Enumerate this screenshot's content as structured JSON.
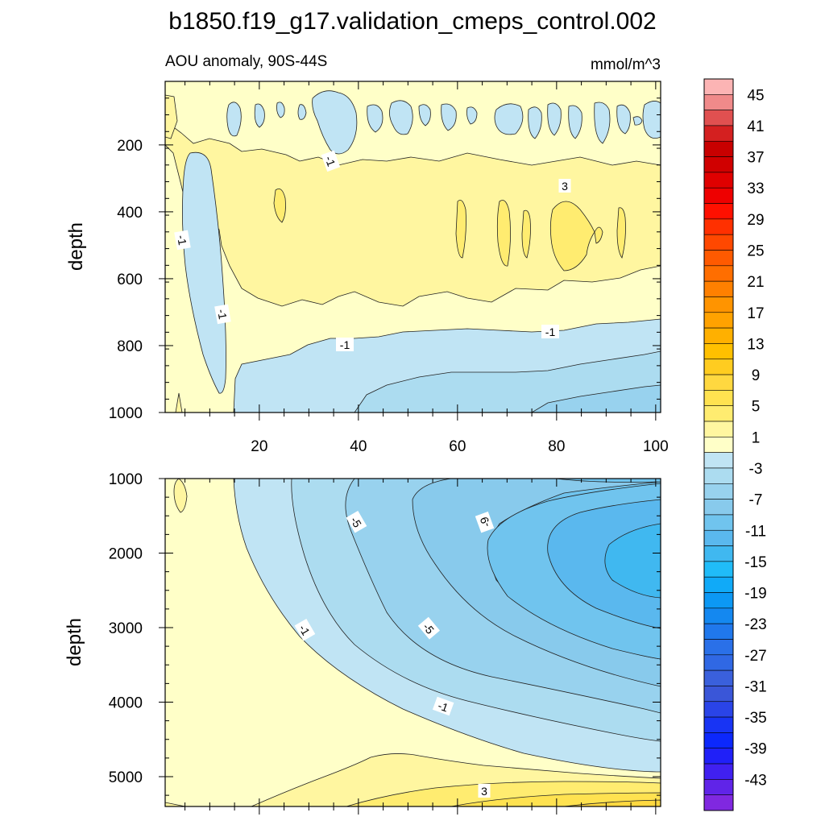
{
  "chart_data": {
    "type": "contour",
    "title": "b1850.f19_g17.validation_cmeps_control.002",
    "subtitle": "AOU anomaly, 90S-44S",
    "units": "mmol/m^3",
    "ylabel": "depth",
    "colorbar": {
      "boundaries": [
        47,
        45,
        43,
        41,
        39,
        37,
        35,
        33,
        31,
        29,
        27,
        25,
        23,
        21,
        19,
        17,
        15,
        13,
        11,
        9,
        7,
        5,
        3,
        1,
        -1,
        -3,
        -5,
        -7,
        -9,
        -11,
        -13,
        -15,
        -17,
        -19,
        -21,
        -23,
        -25,
        -27,
        -29,
        -31,
        -33,
        -35,
        -37,
        -39,
        -41,
        -43,
        -45
      ],
      "labels": [
        "45",
        "41",
        "37",
        "33",
        "29",
        "25",
        "21",
        "17",
        "13",
        "9",
        "5",
        "1",
        "-3",
        "-7",
        "-11",
        "-15",
        "-19",
        "-23",
        "-27",
        "-31",
        "-35",
        "-39",
        "-43"
      ],
      "colors": [
        "#fcb4b4",
        "#f08a8a",
        "#e05050",
        "#d42020",
        "#c80000",
        "#d00000",
        "#e00000",
        "#ee0000",
        "#ff1000",
        "#ff3000",
        "#ff4800",
        "#ff5a00",
        "#ff6e00",
        "#ff8000",
        "#ff9400",
        "#ffa200",
        "#ffb000",
        "#ffc000",
        "#ffcc20",
        "#ffd840",
        "#ffe250",
        "#ffec70",
        "#fff6a0",
        "#ffffc8",
        "#c0e4f4",
        "#acdcf0",
        "#98d2ee",
        "#88caec",
        "#70c4ee",
        "#5ab8ee",
        "#40b8f0",
        "#20bcf8",
        "#10aaf8",
        "#0c98f4",
        "#1488f0",
        "#2078ec",
        "#2a70e8",
        "#3068e4",
        "#3a60dc",
        "#3a56d8",
        "#2a44e8",
        "#1834f4",
        "#0c28fc",
        "#2020f8",
        "#4020f0",
        "#6024e8",
        "#8028e0"
      ]
    },
    "panels": [
      {
        "name": "upper",
        "x_range": [
          1,
          101
        ],
        "y_range": [
          1000,
          10
        ],
        "xticks": [
          "20",
          "40",
          "60",
          "80",
          "100"
        ],
        "yticks": [
          "200",
          "400",
          "600",
          "800",
          "1000"
        ],
        "contour_labels": [
          "-1",
          "-1",
          "-1",
          "-1",
          "-1",
          "3"
        ]
      },
      {
        "name": "lower",
        "x_range": [
          1,
          101
        ],
        "y_range": [
          5400,
          1000
        ],
        "xticks": [
          "20",
          "40",
          "60",
          "80",
          "100"
        ],
        "yticks": [
          "1000",
          "2000",
          "3000",
          "4000",
          "5000"
        ],
        "contour_labels": [
          "-5",
          "-9",
          "-5",
          "-1",
          "-1",
          "3"
        ]
      }
    ]
  }
}
